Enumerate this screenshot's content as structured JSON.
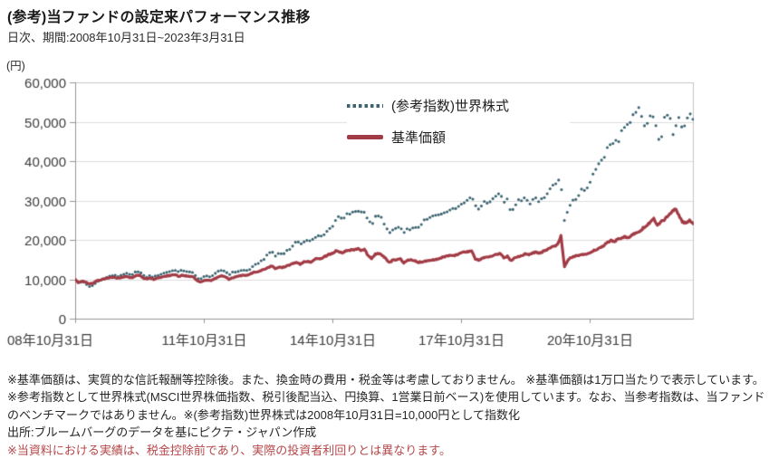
{
  "header": {
    "title": "(参考)当ファンドの設定来パフォーマンス推移",
    "subtitle": "日次、期間:2008年10月31日~2023年3月31日",
    "unit_label": "(円)"
  },
  "legend": {
    "items": [
      {
        "label": "(参考指数)世界株式",
        "color": "#3c6471",
        "style": "dotted"
      },
      {
        "label": "基準価額",
        "color": "#a23b45",
        "style": "solid"
      }
    ]
  },
  "footnotes": [
    "※基準価額は、実質的な信託報酬等控除後。また、換金時の費用・税金等は考慮しておりません。 ※基準価額は1万口当たりで表示しています。",
    "※参考指数として世界株式(MSCI世界株価指数、税引後配当込、円換算、1営業日前ベース)を使用しています。なお、当参考指数は、当ファンド",
    "のベンチマークではありません。※(参考指数)世界株式は2008年10月31日=10,000円として指数化",
    "出所:ブルームバーグのデータを基にピクテ・ジャパン作成",
    "※当資料における実績は、税金控除前であり、実際の投資者利回りとは異なります。"
  ],
  "colors": {
    "world_equity": "#3c6471",
    "nav": "#a23b45",
    "grid": "#dcdcdc",
    "plot_border": "#c6c6c6",
    "axis": "#969696",
    "tick_label": "#3a3a3a",
    "footnote_warning": "#b5484a"
  },
  "chart_data": {
    "type": "line",
    "title": "(参考)当ファンドの設定来パフォーマンス推移",
    "subtitle": "日次、期間:2008年10月31日~2023年3月31日",
    "unit": "円",
    "x_start": "2008-10-31",
    "x_end": "2023-03-31",
    "total_days": 5264,
    "xtick_labels": [
      "08年10月31日",
      "11年10月31日",
      "14年10月31日",
      "17年10月31日",
      "20年10月31日"
    ],
    "xtick_day_offsets": [
      0,
      1095,
      2191,
      3287,
      4383
    ],
    "ylim": [
      0,
      60000
    ],
    "ytick_step": 10000,
    "ytick_values": [
      0,
      10000,
      20000,
      30000,
      40000,
      50000,
      60000
    ],
    "grid": "horizontal",
    "legend_position": "top-center-inside",
    "points_start": "2008-10",
    "points_interval": "monthly",
    "series": [
      {
        "name": "(参考指数)世界株式",
        "color": "#3c6471",
        "style": "dotted",
        "monthly_values": [
          10000,
          8900,
          9500,
          8900,
          8100,
          8400,
          9300,
          9700,
          10200,
          10500,
          10900,
          11000,
          10700,
          11100,
          11500,
          11200,
          11100,
          11900,
          12100,
          10900,
          10600,
          10900,
          10500,
          11000,
          11300,
          11600,
          11900,
          12100,
          12400,
          11800,
          12300,
          12100,
          11800,
          11600,
          10500,
          10000,
          10600,
          10800,
          10700,
          11200,
          11900,
          12300,
          12100,
          11200,
          11700,
          11900,
          12100,
          12300,
          12200,
          12600,
          13300,
          14000,
          14600,
          15300,
          16300,
          17300,
          15800,
          16700,
          16400,
          17100,
          17600,
          18700,
          19500,
          18900,
          19700,
          19900,
          19800,
          20300,
          21000,
          20900,
          21800,
          22600,
          23500,
          25300,
          25800,
          25100,
          26400,
          26700,
          26900,
          27600,
          27000,
          27400,
          24900,
          23800,
          25700,
          26000,
          25400,
          23200,
          21500,
          22600,
          23000,
          23300,
          21500,
          22700,
          22900,
          22800,
          23200,
          24200,
          25000,
          25300,
          26000,
          26100,
          26400,
          27000,
          27400,
          27700,
          27700,
          28300,
          29400,
          29800,
          30100,
          31200,
          28900,
          28100,
          29200,
          29600,
          29800,
          30500,
          31300,
          32300,
          29600,
          30100,
          26900,
          28800,
          29800,
          30100,
          31200,
          29100,
          30200,
          30800,
          29700,
          30700,
          31500,
          32700,
          33800,
          35200,
          34000,
          24800,
          28000,
          29500,
          30500,
          31000,
          33000,
          32500,
          34500,
          37000,
          38500,
          39500,
          41000,
          43000,
          44500,
          44000,
          46000,
          47000,
          48500,
          47500,
          50500,
          51500,
          52500,
          50000,
          48500,
          51500,
          49000,
          47500,
          46500,
          49500,
          51500,
          47500,
          50000,
          53000,
          50000,
          50000,
          52000,
          51000
        ]
      },
      {
        "name": "基準価額",
        "color": "#a23b45",
        "style": "solid",
        "monthly_values": [
          10000,
          9100,
          9600,
          9200,
          8800,
          9000,
          9600,
          9800,
          10100,
          10300,
          10500,
          10500,
          10300,
          10500,
          10700,
          10500,
          10400,
          10900,
          11000,
          10300,
          10100,
          10300,
          10000,
          10300,
          10500,
          10700,
          10900,
          11000,
          11200,
          10700,
          11000,
          10900,
          10700,
          10600,
          9800,
          9300,
          9700,
          9800,
          9700,
          10100,
          10600,
          10900,
          10700,
          10000,
          10400,
          10600,
          10800,
          11000,
          11000,
          11300,
          11800,
          11900,
          12200,
          12600,
          13000,
          13400,
          12700,
          13100,
          13000,
          13300,
          13600,
          14000,
          14300,
          13800,
          14400,
          14500,
          14400,
          15100,
          15300,
          15200,
          15800,
          16300,
          16500,
          17200,
          17000,
          16700,
          17300,
          17400,
          17500,
          17800,
          17400,
          17600,
          16000,
          15300,
          16300,
          16500,
          16100,
          15200,
          14200,
          14900,
          15000,
          15200,
          14200,
          14800,
          14900,
          14800,
          14300,
          14400,
          14600,
          14700,
          14900,
          15000,
          15300,
          15600,
          15900,
          16100,
          16000,
          16300,
          16700,
          16900,
          17000,
          17100,
          15200,
          14900,
          15300,
          15500,
          15700,
          16000,
          16300,
          16600,
          15500,
          15800,
          14700,
          15400,
          15800,
          16000,
          16500,
          16200,
          16600,
          16900,
          16500,
          17100,
          17500,
          18000,
          18300,
          18700,
          21000,
          13200,
          15000,
          15600,
          15900,
          16000,
          16400,
          16200,
          16600,
          17200,
          17600,
          18000,
          18600,
          19300,
          19800,
          19600,
          20200,
          20400,
          20800,
          20500,
          21300,
          21800,
          22000,
          23000,
          23500,
          24500,
          25300,
          23800,
          24600,
          25200,
          26200,
          27000,
          28000,
          26200,
          24600,
          24200,
          25000,
          24000
        ]
      }
    ]
  }
}
